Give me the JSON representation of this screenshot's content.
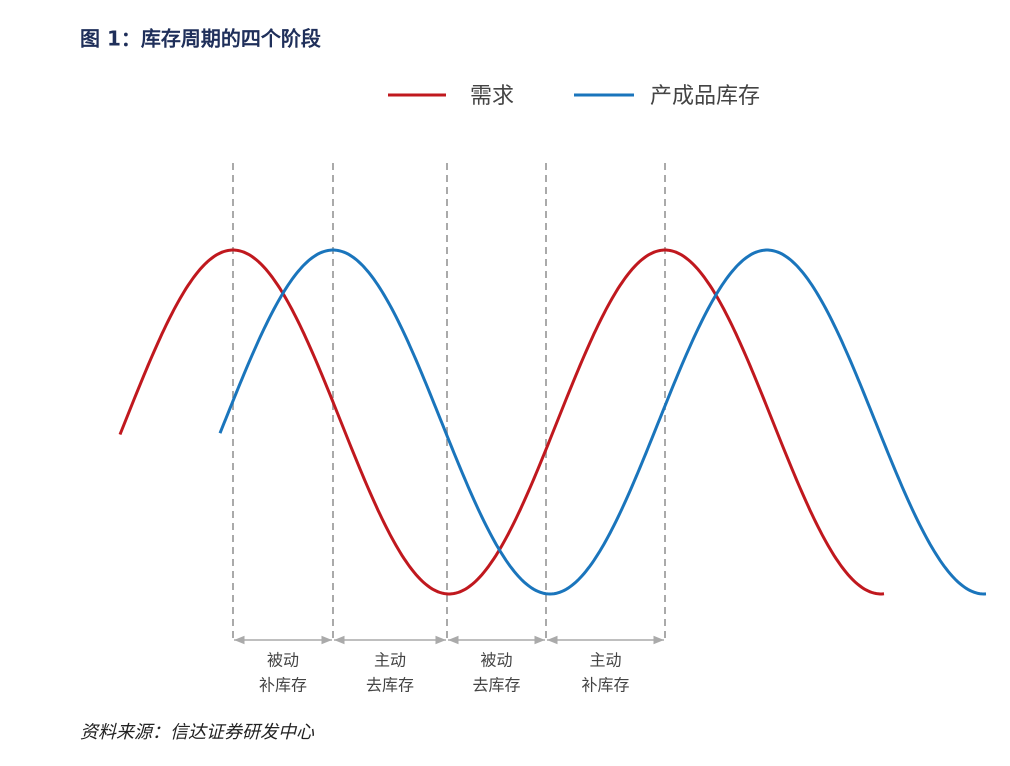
{
  "title": "图 1：库存周期的四个阶段",
  "legend": [
    {
      "name": "需求",
      "color": "#c0181e"
    },
    {
      "name": "产成品库存",
      "color": "#1a75bc"
    }
  ],
  "phases": [
    {
      "line1": "被动",
      "line2": "补库存"
    },
    {
      "line1": "主动",
      "line2": "去库存"
    },
    {
      "line1": "被动",
      "line2": "去库存"
    },
    {
      "line1": "主动",
      "line2": "补库存"
    }
  ],
  "source": "资料来源：信达证券研发中心"
}
